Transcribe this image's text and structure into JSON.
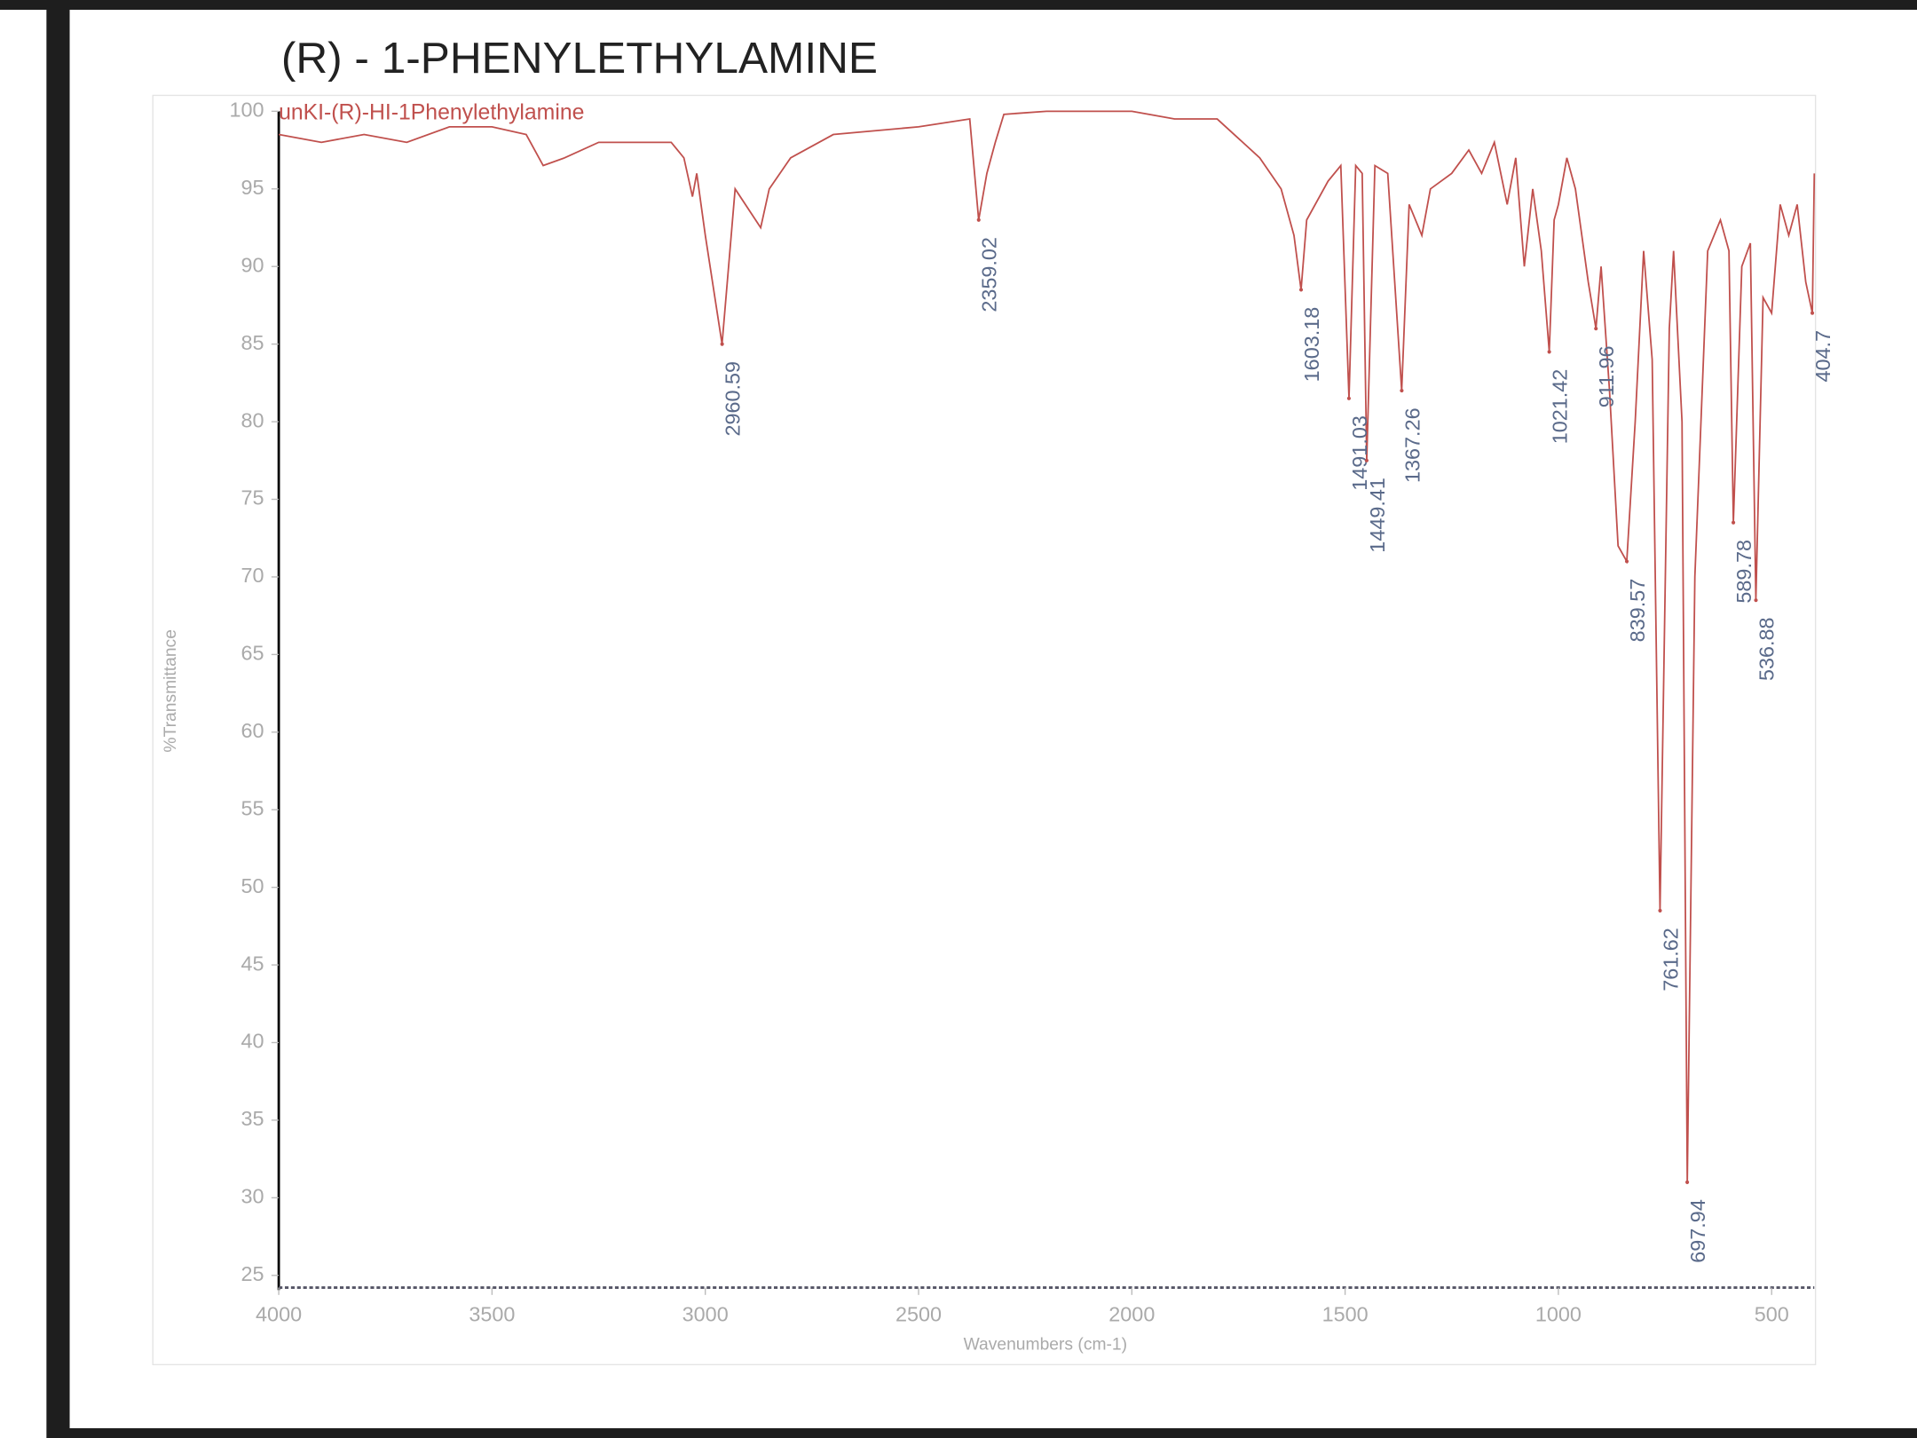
{
  "chart_data": {
    "type": "line",
    "title": "(R) - 1-PHENYLETHYLAMINE",
    "x_label": "Wavenumbers (cm-1)",
    "y_label": "%Transmittance",
    "x": [
      4000,
      3900,
      3800,
      3700,
      3600,
      3500,
      3420,
      3380,
      3330,
      3250,
      3150,
      3080,
      3050,
      3030,
      3020,
      3000,
      2960.59,
      2930,
      2870,
      2850,
      2800,
      2700,
      2500,
      2380,
      2359.02,
      2340,
      2320,
      2300,
      2200,
      2000,
      1900,
      1800,
      1700,
      1650,
      1620,
      1603.18,
      1590,
      1540,
      1510,
      1491.03,
      1475,
      1460,
      1449.41,
      1430,
      1400,
      1367.26,
      1350,
      1320,
      1300,
      1250,
      1210,
      1180,
      1150,
      1120,
      1100,
      1080,
      1060,
      1040,
      1021.42,
      1010,
      1000,
      980,
      960,
      930,
      911.96,
      900,
      880,
      860,
      839.57,
      820,
      800,
      780,
      761.62,
      740,
      730,
      710,
      697.94,
      680,
      650,
      620,
      600,
      589.78,
      570,
      550,
      536.88,
      520,
      500,
      480,
      460,
      440,
      420,
      404.7,
      400
    ],
    "series": [
      {
        "name": "unKI-(R)-HI-1Phenylethylamine",
        "color": "#c0504d",
        "values": [
          98.5,
          98,
          98.5,
          98,
          99,
          99,
          98.5,
          96.5,
          97,
          98,
          98,
          98,
          97,
          94.5,
          96,
          92,
          85,
          95,
          92.5,
          95,
          97,
          98.5,
          99,
          99.5,
          93,
          96,
          98,
          99.8,
          100,
          100,
          99.5,
          99.5,
          97,
          95,
          92,
          88.5,
          93,
          95.5,
          96.5,
          81.5,
          96.5,
          96,
          77.5,
          96.5,
          96,
          82,
          94,
          92,
          95,
          96,
          97.5,
          96,
          98,
          94,
          97,
          90,
          95,
          91,
          84.5,
          93,
          94,
          97,
          95,
          89,
          86,
          90,
          82,
          72,
          71,
          80,
          91,
          84,
          48.5,
          86,
          91,
          80,
          31,
          70,
          91,
          93,
          91,
          73.5,
          90,
          91.5,
          68.5,
          88,
          87,
          94,
          92,
          94,
          89,
          87,
          96
        ]
      }
    ],
    "peaks": [
      {
        "x": 2960.59,
        "y": 85
      },
      {
        "x": 2359.02,
        "y": 93
      },
      {
        "x": 1603.18,
        "y": 88.5
      },
      {
        "x": 1491.03,
        "y": 81.5
      },
      {
        "x": 1449.41,
        "y": 77.5
      },
      {
        "x": 1367.26,
        "y": 82
      },
      {
        "x": 1021.42,
        "y": 84.5
      },
      {
        "x": 911.96,
        "y": 86
      },
      {
        "x": 839.57,
        "y": 71
      },
      {
        "x": 761.62,
        "y": 48.5
      },
      {
        "x": 697.94,
        "y": 31
      },
      {
        "x": 589.78,
        "y": 73.5
      },
      {
        "x": 536.88,
        "y": 68.5
      },
      {
        "x": 404.7,
        "y": 87
      }
    ],
    "xlim": [
      4000,
      400
    ],
    "xticks": [
      4000,
      3500,
      3000,
      2500,
      2000,
      1500,
      1000,
      500
    ],
    "ylim": [
      25,
      100
    ],
    "yticks": [
      25,
      30,
      35,
      40,
      45,
      50,
      55,
      60,
      65,
      70,
      75,
      80,
      85,
      90,
      95,
      100
    ]
  }
}
